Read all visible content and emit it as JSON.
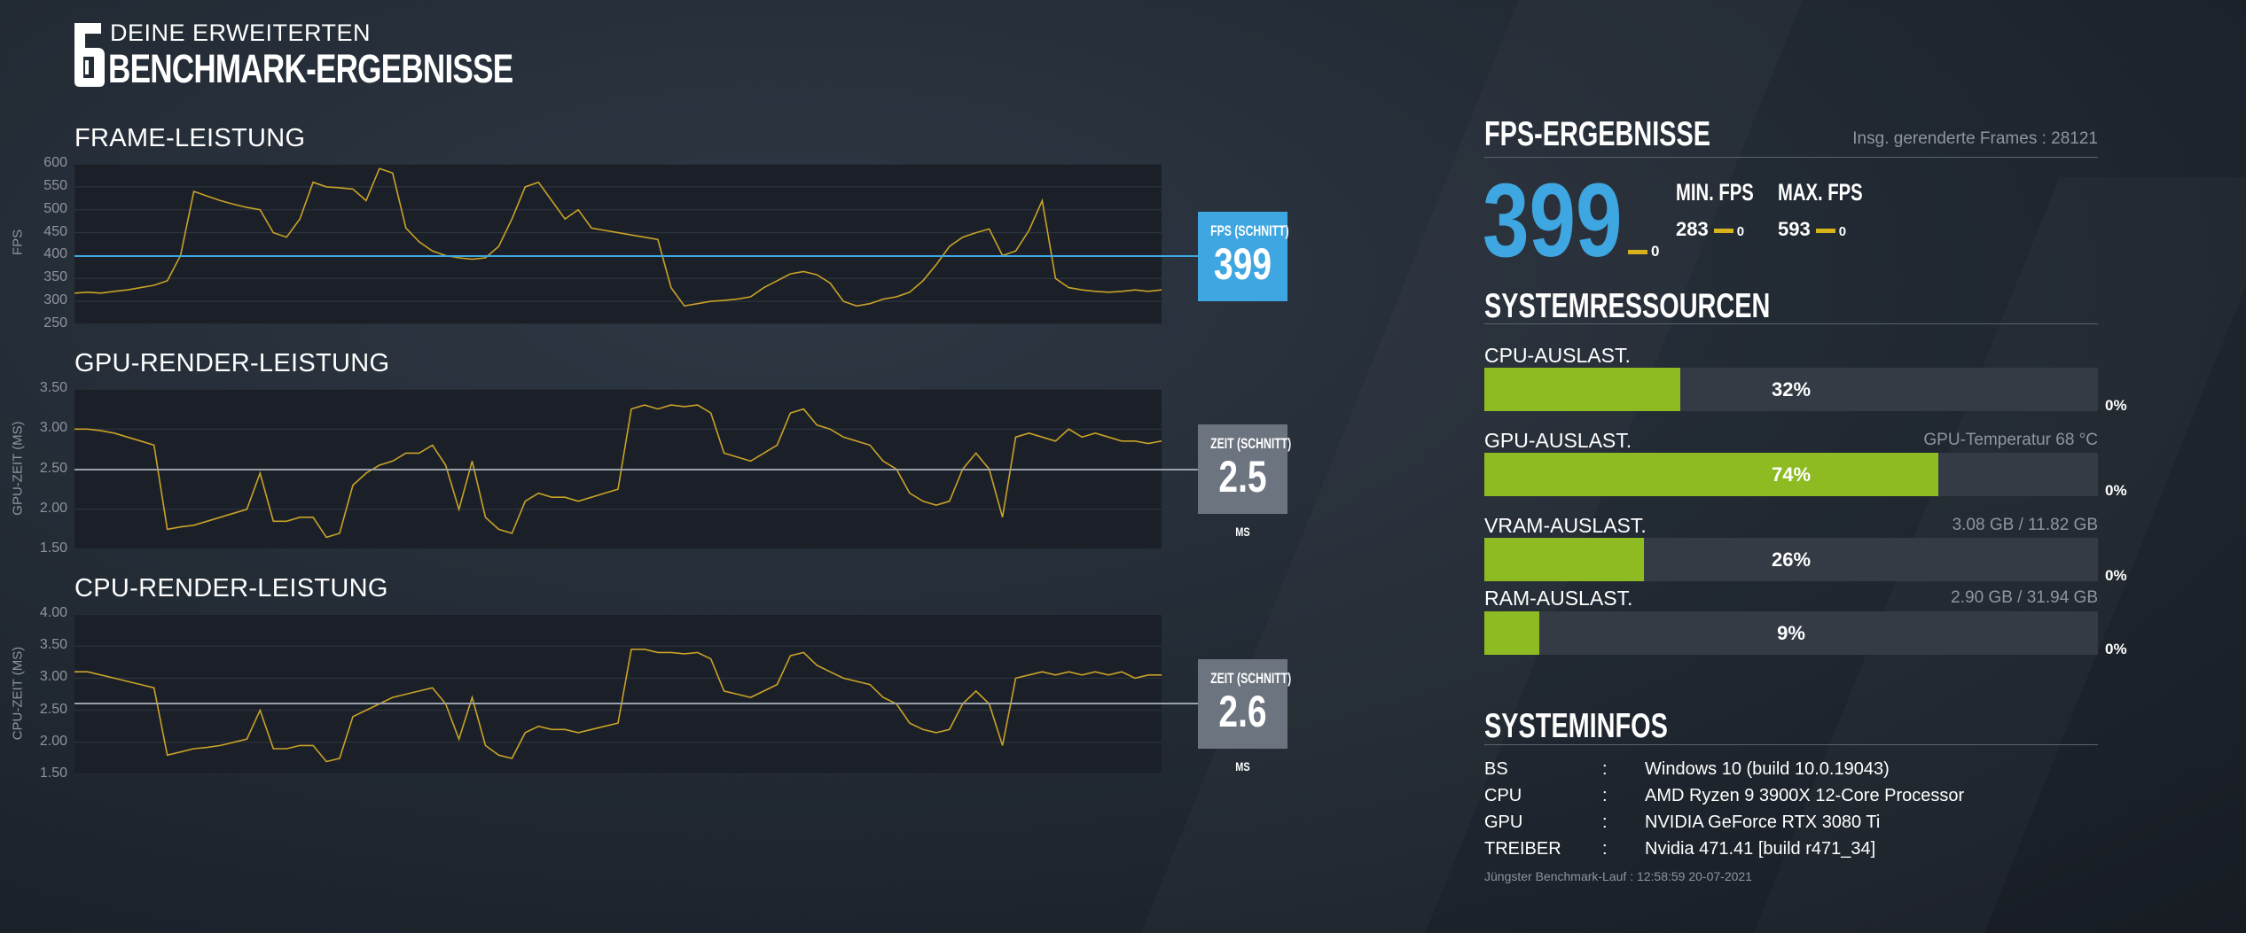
{
  "header": {
    "logo_glyph": "6",
    "line1": "DEINE ERWEITERTEN",
    "line2": "BENCHMARK-ERGEBNISSE"
  },
  "colors": {
    "fps_accent": "#3ea6e0",
    "line": "#c9a227",
    "bar_fill": "#8fbb22",
    "avg_grey": "#6c7480"
  },
  "charts": [
    {
      "id": "fps",
      "title": "FRAME-LEISTUNG",
      "ylabel": "FPS",
      "ymin": 250,
      "ymax": 600,
      "ticks": [
        "600",
        "550",
        "500",
        "450",
        "400",
        "350",
        "300",
        "250"
      ],
      "avg_label": "FPS (SCHNITT)",
      "avg_value": "399",
      "avg_unit": "",
      "avg_line": 399,
      "values": [
        318,
        320,
        318,
        322,
        325,
        330,
        335,
        345,
        400,
        540,
        530,
        520,
        512,
        505,
        500,
        450,
        440,
        480,
        560,
        550,
        548,
        545,
        520,
        590,
        580,
        460,
        430,
        410,
        400,
        395,
        392,
        395,
        420,
        480,
        550,
        560,
        520,
        480,
        500,
        460,
        455,
        450,
        445,
        440,
        435,
        330,
        290,
        295,
        300,
        302,
        305,
        310,
        330,
        345,
        360,
        365,
        358,
        340,
        300,
        290,
        295,
        305,
        310,
        320,
        345,
        380,
        420,
        440,
        450,
        458,
        400,
        410,
        455,
        520,
        350,
        330,
        325,
        322,
        320,
        322,
        325,
        322,
        325
      ]
    },
    {
      "id": "gpu",
      "title": "GPU-RENDER-LEISTUNG",
      "ylabel": "GPU-ZEIT (MS)",
      "ymin": 1.5,
      "ymax": 3.5,
      "ticks": [
        "3.50",
        "3.00",
        "2.50",
        "2.00",
        "1.50"
      ],
      "avg_label": "ZEIT (SCHNITT)",
      "avg_value": "2.5",
      "avg_unit": "MS",
      "avg_line": 2.5,
      "values": [
        3.0,
        3.0,
        2.98,
        2.95,
        2.9,
        2.85,
        2.8,
        1.75,
        1.78,
        1.8,
        1.85,
        1.9,
        1.95,
        2.0,
        2.45,
        1.85,
        1.85,
        1.9,
        1.9,
        1.65,
        1.7,
        2.3,
        2.45,
        2.55,
        2.6,
        2.7,
        2.7,
        2.8,
        2.55,
        2.0,
        2.6,
        1.9,
        1.75,
        1.7,
        2.1,
        2.2,
        2.15,
        2.15,
        2.1,
        2.15,
        2.2,
        2.25,
        3.25,
        3.3,
        3.25,
        3.3,
        3.28,
        3.3,
        3.2,
        2.7,
        2.65,
        2.6,
        2.7,
        2.8,
        3.2,
        3.25,
        3.05,
        3.0,
        2.9,
        2.85,
        2.8,
        2.6,
        2.5,
        2.2,
        2.1,
        2.05,
        2.1,
        2.5,
        2.7,
        2.5,
        1.9,
        2.9,
        2.95,
        2.9,
        2.85,
        3.0,
        2.9,
        2.95,
        2.9,
        2.85,
        2.85,
        2.82,
        2.85
      ]
    },
    {
      "id": "cpu",
      "title": "CPU-RENDER-LEISTUNG",
      "ylabel": "CPU-ZEIT (MS)",
      "ymin": 1.5,
      "ymax": 4.0,
      "ticks": [
        "4.00",
        "3.50",
        "3.00",
        "2.50",
        "2.00",
        "1.50"
      ],
      "avg_label": "ZEIT (SCHNITT)",
      "avg_value": "2.6",
      "avg_unit": "MS",
      "avg_line": 2.6,
      "values": [
        3.1,
        3.1,
        3.05,
        3.0,
        2.95,
        2.9,
        2.85,
        1.8,
        1.85,
        1.9,
        1.92,
        1.95,
        2.0,
        2.05,
        2.5,
        1.9,
        1.9,
        1.95,
        1.95,
        1.7,
        1.75,
        2.4,
        2.5,
        2.6,
        2.7,
        2.75,
        2.8,
        2.85,
        2.6,
        2.05,
        2.7,
        1.95,
        1.8,
        1.75,
        2.15,
        2.25,
        2.2,
        2.2,
        2.15,
        2.2,
        2.25,
        2.3,
        3.45,
        3.45,
        3.4,
        3.4,
        3.38,
        3.4,
        3.3,
        2.8,
        2.75,
        2.7,
        2.8,
        2.9,
        3.35,
        3.4,
        3.2,
        3.1,
        3.0,
        2.95,
        2.9,
        2.7,
        2.6,
        2.3,
        2.2,
        2.15,
        2.2,
        2.6,
        2.8,
        2.6,
        1.95,
        3.0,
        3.05,
        3.1,
        3.05,
        3.1,
        3.05,
        3.1,
        3.05,
        3.1,
        3.0,
        3.05,
        3.05
      ]
    }
  ],
  "fps_results": {
    "title": "FPS-ERGEBNISSE",
    "frames_info": "Insg. gerenderte Frames : 28121",
    "avg": "399",
    "avg_delta": "0",
    "min_label": "MIN. FPS",
    "min_value": "283",
    "min_delta": "0",
    "max_label": "MAX. FPS",
    "max_value": "593",
    "max_delta": "0"
  },
  "resources": {
    "title": "SYSTEMRESSOURCEN",
    "items": [
      {
        "label": "CPU-AUSLAST.",
        "info": "",
        "pct_text": "32%",
        "pct": 32,
        "delta": "0%"
      },
      {
        "label": "GPU-AUSLAST.",
        "info": "GPU-Temperatur 68 °C",
        "pct_text": "74%",
        "pct": 74,
        "delta": "0%"
      },
      {
        "label": "VRAM-AUSLAST.",
        "info": "3.08 GB / 11.82 GB",
        "pct_text": "26%",
        "pct": 26,
        "delta": "0%"
      },
      {
        "label": "RAM-AUSLAST.",
        "info": "2.90 GB / 31.94 GB",
        "pct_text": "9%",
        "pct": 9,
        "delta": "0%"
      }
    ]
  },
  "sysinfo": {
    "title": "SYSTEMINFOS",
    "rows": [
      {
        "key": "BS",
        "sep": ":",
        "value": "Windows 10 (build 10.0.19043)"
      },
      {
        "key": "CPU",
        "sep": ":",
        "value": "AMD Ryzen 9 3900X 12-Core Processor"
      },
      {
        "key": "GPU",
        "sep": ":",
        "value": "NVIDIA GeForce RTX 3080 Ti"
      },
      {
        "key": "TREIBER",
        "sep": ":",
        "value": "Nvidia 471.41 [build r471_34]"
      }
    ],
    "last_run": "Jüngster Benchmark-Lauf : 12:58:59 20-07-2021"
  }
}
